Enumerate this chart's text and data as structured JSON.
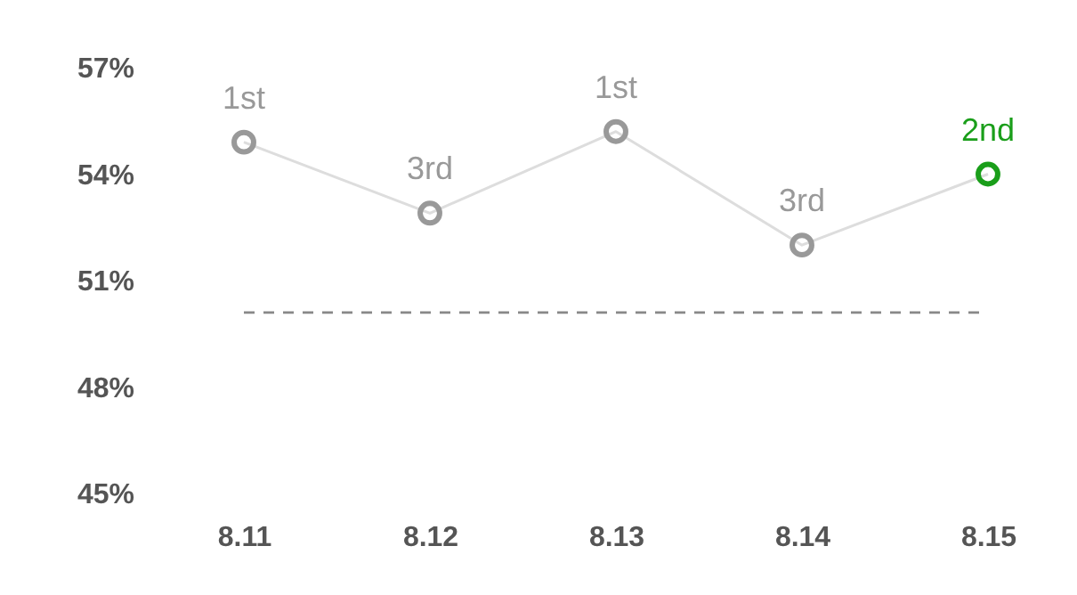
{
  "chart_data": {
    "type": "line",
    "categories": [
      "8.11",
      "8.12",
      "8.13",
      "8.14",
      "8.15"
    ],
    "series": [
      {
        "color": "#dddddd",
        "values": [
          54.9,
          52.9,
          55.2,
          52.0,
          54.0
        ],
        "colors": [
          "#999999",
          "#999999",
          "#999999",
          "#999999",
          "#1a9e1a"
        ]
      }
    ],
    "annotations": [
      {
        "text": "1st",
        "x": "8.11",
        "y": 54.9
      },
      {
        "text": "3rd",
        "x": "8.12",
        "y": 52.9
      },
      {
        "text": "1st",
        "x": "8.13",
        "y": 55.2
      },
      {
        "text": "3rd",
        "x": "8.14",
        "y": 52.0
      },
      {
        "text": "2nd",
        "x": "8.15",
        "y": 54.0
      }
    ],
    "ylim": [
      45,
      57
    ],
    "yticks": [
      {
        "value": 45,
        "label": "45%"
      },
      {
        "value": 48,
        "label": "48%"
      },
      {
        "value": 51,
        "label": "51%"
      },
      {
        "value": 54,
        "label": "54%"
      },
      {
        "value": 57,
        "label": "57%"
      }
    ],
    "ref_lines": [
      {
        "axis": "y",
        "value": 50.1,
        "color": "#888888",
        "line_style": "dashed"
      }
    ],
    "marker": "circle",
    "grid": false
  }
}
